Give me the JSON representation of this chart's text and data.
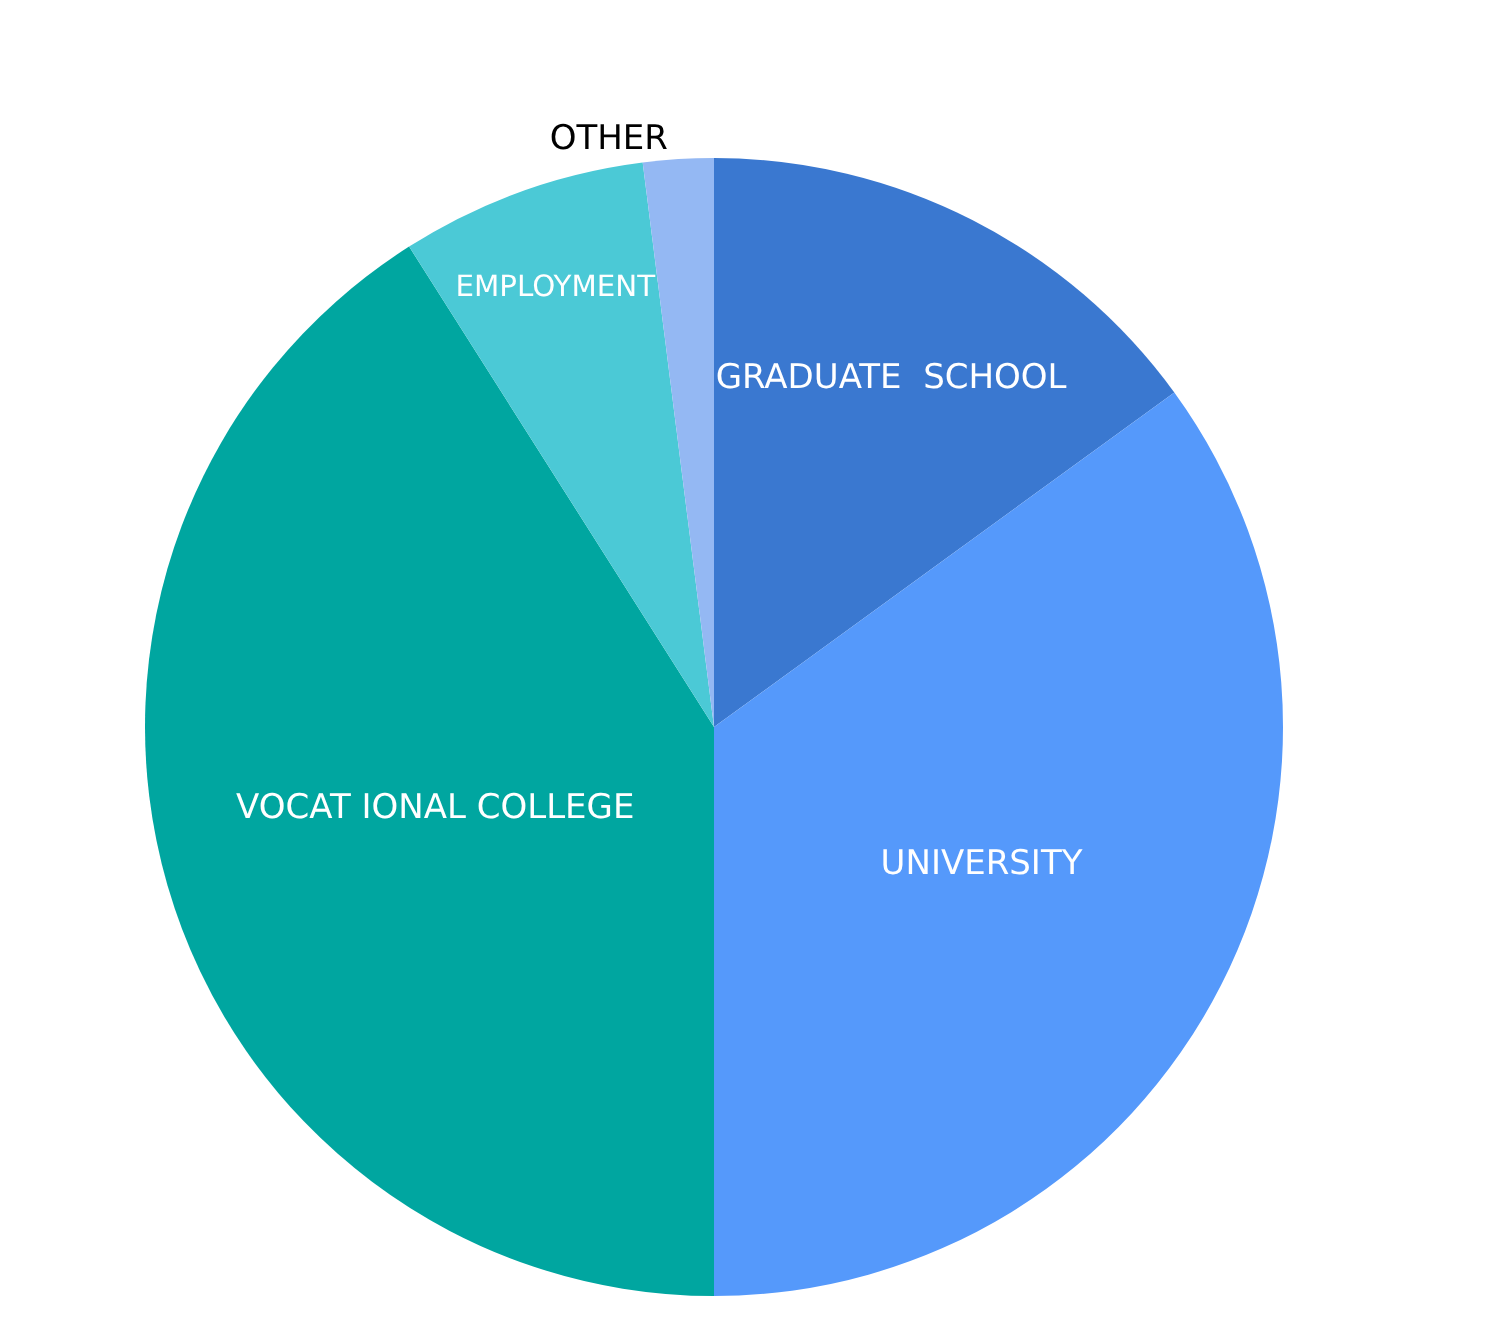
{
  "chart_data": {
    "type": "pie",
    "categories": [
      "GRADUATE  SCHOOL",
      "UNIVERSITY",
      "VOCAT IONAL COLLEGE",
      "EMPLOYMENT",
      "OTHER"
    ],
    "values": [
      15,
      35,
      41,
      7,
      2
    ],
    "colors": [
      "#3a78d0",
      "#5599fb",
      "#00a6a0",
      "#4bc9d6",
      "#94b8f3"
    ],
    "legend": false
  }
}
